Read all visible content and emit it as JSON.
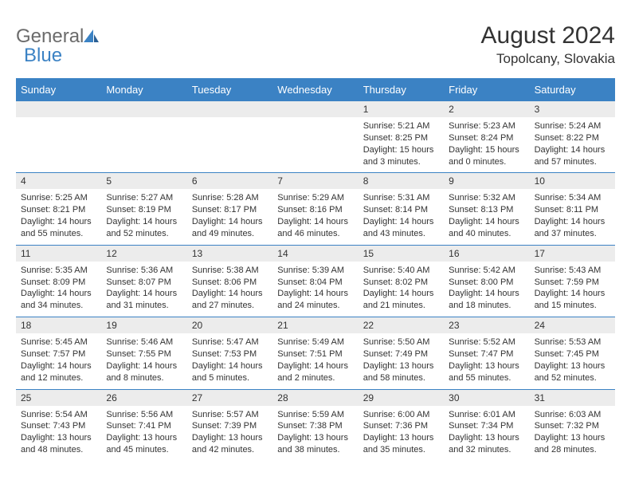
{
  "logo": {
    "word1": "General",
    "word2": "Blue"
  },
  "title": "August 2024",
  "location": "Topolcany, Slovakia",
  "colors": {
    "accent": "#3b82c4",
    "headerRowBg": "#ececec",
    "text": "#333333",
    "bg": "#ffffff"
  },
  "dayNames": [
    "Sunday",
    "Monday",
    "Tuesday",
    "Wednesday",
    "Thursday",
    "Friday",
    "Saturday"
  ],
  "weeks": [
    [
      {
        "n": "",
        "sunrise": "",
        "sunset": "",
        "daylight": ""
      },
      {
        "n": "",
        "sunrise": "",
        "sunset": "",
        "daylight": ""
      },
      {
        "n": "",
        "sunrise": "",
        "sunset": "",
        "daylight": ""
      },
      {
        "n": "",
        "sunrise": "",
        "sunset": "",
        "daylight": ""
      },
      {
        "n": "1",
        "sunrise": "Sunrise: 5:21 AM",
        "sunset": "Sunset: 8:25 PM",
        "daylight": "Daylight: 15 hours and 3 minutes."
      },
      {
        "n": "2",
        "sunrise": "Sunrise: 5:23 AM",
        "sunset": "Sunset: 8:24 PM",
        "daylight": "Daylight: 15 hours and 0 minutes."
      },
      {
        "n": "3",
        "sunrise": "Sunrise: 5:24 AM",
        "sunset": "Sunset: 8:22 PM",
        "daylight": "Daylight: 14 hours and 57 minutes."
      }
    ],
    [
      {
        "n": "4",
        "sunrise": "Sunrise: 5:25 AM",
        "sunset": "Sunset: 8:21 PM",
        "daylight": "Daylight: 14 hours and 55 minutes."
      },
      {
        "n": "5",
        "sunrise": "Sunrise: 5:27 AM",
        "sunset": "Sunset: 8:19 PM",
        "daylight": "Daylight: 14 hours and 52 minutes."
      },
      {
        "n": "6",
        "sunrise": "Sunrise: 5:28 AM",
        "sunset": "Sunset: 8:17 PM",
        "daylight": "Daylight: 14 hours and 49 minutes."
      },
      {
        "n": "7",
        "sunrise": "Sunrise: 5:29 AM",
        "sunset": "Sunset: 8:16 PM",
        "daylight": "Daylight: 14 hours and 46 minutes."
      },
      {
        "n": "8",
        "sunrise": "Sunrise: 5:31 AM",
        "sunset": "Sunset: 8:14 PM",
        "daylight": "Daylight: 14 hours and 43 minutes."
      },
      {
        "n": "9",
        "sunrise": "Sunrise: 5:32 AM",
        "sunset": "Sunset: 8:13 PM",
        "daylight": "Daylight: 14 hours and 40 minutes."
      },
      {
        "n": "10",
        "sunrise": "Sunrise: 5:34 AM",
        "sunset": "Sunset: 8:11 PM",
        "daylight": "Daylight: 14 hours and 37 minutes."
      }
    ],
    [
      {
        "n": "11",
        "sunrise": "Sunrise: 5:35 AM",
        "sunset": "Sunset: 8:09 PM",
        "daylight": "Daylight: 14 hours and 34 minutes."
      },
      {
        "n": "12",
        "sunrise": "Sunrise: 5:36 AM",
        "sunset": "Sunset: 8:07 PM",
        "daylight": "Daylight: 14 hours and 31 minutes."
      },
      {
        "n": "13",
        "sunrise": "Sunrise: 5:38 AM",
        "sunset": "Sunset: 8:06 PM",
        "daylight": "Daylight: 14 hours and 27 minutes."
      },
      {
        "n": "14",
        "sunrise": "Sunrise: 5:39 AM",
        "sunset": "Sunset: 8:04 PM",
        "daylight": "Daylight: 14 hours and 24 minutes."
      },
      {
        "n": "15",
        "sunrise": "Sunrise: 5:40 AM",
        "sunset": "Sunset: 8:02 PM",
        "daylight": "Daylight: 14 hours and 21 minutes."
      },
      {
        "n": "16",
        "sunrise": "Sunrise: 5:42 AM",
        "sunset": "Sunset: 8:00 PM",
        "daylight": "Daylight: 14 hours and 18 minutes."
      },
      {
        "n": "17",
        "sunrise": "Sunrise: 5:43 AM",
        "sunset": "Sunset: 7:59 PM",
        "daylight": "Daylight: 14 hours and 15 minutes."
      }
    ],
    [
      {
        "n": "18",
        "sunrise": "Sunrise: 5:45 AM",
        "sunset": "Sunset: 7:57 PM",
        "daylight": "Daylight: 14 hours and 12 minutes."
      },
      {
        "n": "19",
        "sunrise": "Sunrise: 5:46 AM",
        "sunset": "Sunset: 7:55 PM",
        "daylight": "Daylight: 14 hours and 8 minutes."
      },
      {
        "n": "20",
        "sunrise": "Sunrise: 5:47 AM",
        "sunset": "Sunset: 7:53 PM",
        "daylight": "Daylight: 14 hours and 5 minutes."
      },
      {
        "n": "21",
        "sunrise": "Sunrise: 5:49 AM",
        "sunset": "Sunset: 7:51 PM",
        "daylight": "Daylight: 14 hours and 2 minutes."
      },
      {
        "n": "22",
        "sunrise": "Sunrise: 5:50 AM",
        "sunset": "Sunset: 7:49 PM",
        "daylight": "Daylight: 13 hours and 58 minutes."
      },
      {
        "n": "23",
        "sunrise": "Sunrise: 5:52 AM",
        "sunset": "Sunset: 7:47 PM",
        "daylight": "Daylight: 13 hours and 55 minutes."
      },
      {
        "n": "24",
        "sunrise": "Sunrise: 5:53 AM",
        "sunset": "Sunset: 7:45 PM",
        "daylight": "Daylight: 13 hours and 52 minutes."
      }
    ],
    [
      {
        "n": "25",
        "sunrise": "Sunrise: 5:54 AM",
        "sunset": "Sunset: 7:43 PM",
        "daylight": "Daylight: 13 hours and 48 minutes."
      },
      {
        "n": "26",
        "sunrise": "Sunrise: 5:56 AM",
        "sunset": "Sunset: 7:41 PM",
        "daylight": "Daylight: 13 hours and 45 minutes."
      },
      {
        "n": "27",
        "sunrise": "Sunrise: 5:57 AM",
        "sunset": "Sunset: 7:39 PM",
        "daylight": "Daylight: 13 hours and 42 minutes."
      },
      {
        "n": "28",
        "sunrise": "Sunrise: 5:59 AM",
        "sunset": "Sunset: 7:38 PM",
        "daylight": "Daylight: 13 hours and 38 minutes."
      },
      {
        "n": "29",
        "sunrise": "Sunrise: 6:00 AM",
        "sunset": "Sunset: 7:36 PM",
        "daylight": "Daylight: 13 hours and 35 minutes."
      },
      {
        "n": "30",
        "sunrise": "Sunrise: 6:01 AM",
        "sunset": "Sunset: 7:34 PM",
        "daylight": "Daylight: 13 hours and 32 minutes."
      },
      {
        "n": "31",
        "sunrise": "Sunrise: 6:03 AM",
        "sunset": "Sunset: 7:32 PM",
        "daylight": "Daylight: 13 hours and 28 minutes."
      }
    ]
  ]
}
